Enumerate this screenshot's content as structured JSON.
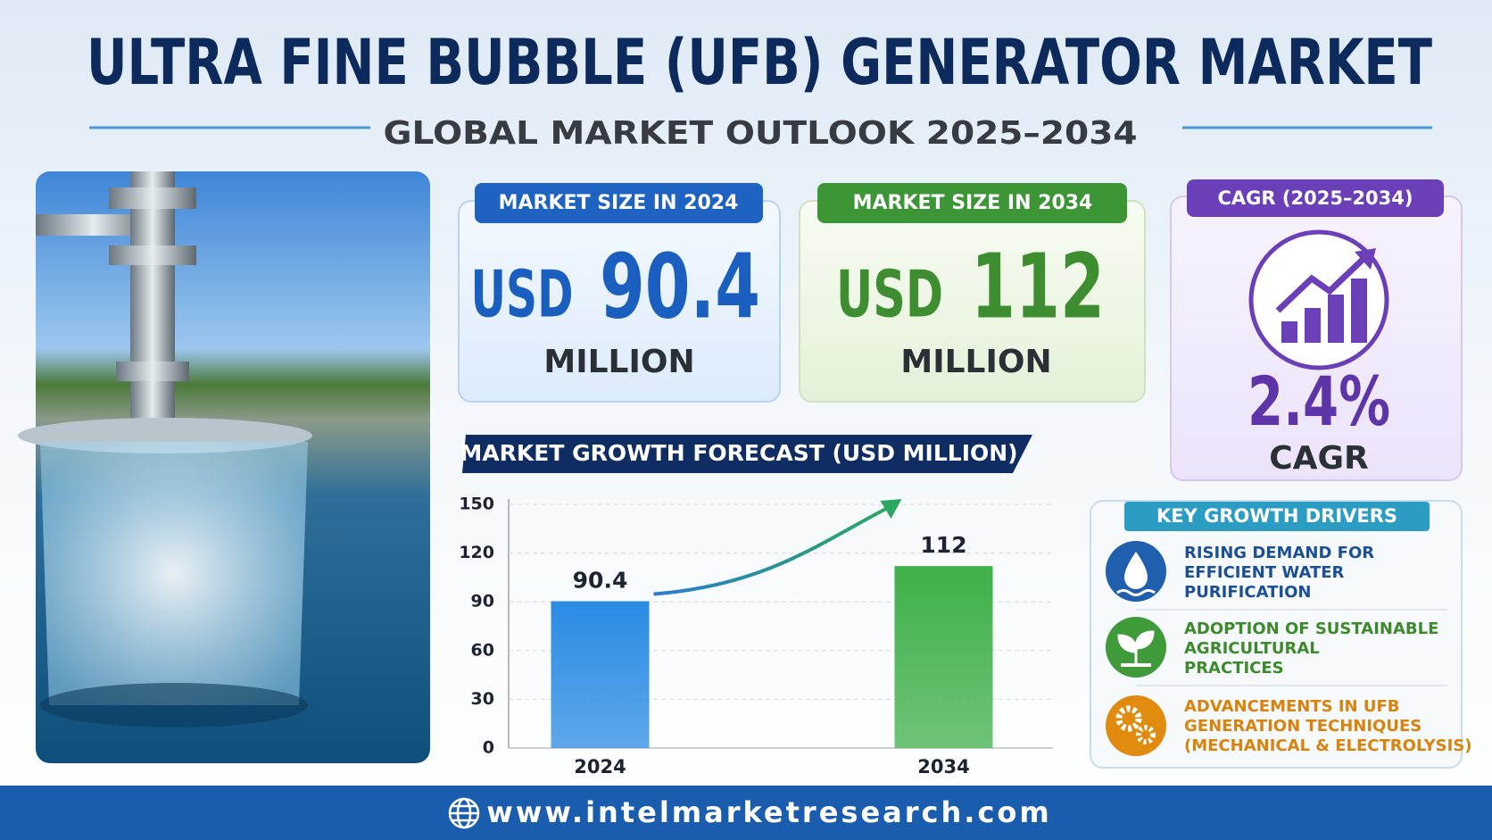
{
  "header": {
    "title": "ULTRA FINE BUBBLE (UFB) GENERATOR MARKET",
    "subtitle": "GLOBAL MARKET OUTLOOK 2025–2034"
  },
  "cards": [
    {
      "label": "MARKET SIZE IN 2024",
      "currency": "USD",
      "value": "90.4",
      "unit": "MILLION"
    },
    {
      "label": "MARKET SIZE IN 2034",
      "currency": "USD",
      "value": "112",
      "unit": "MILLION"
    }
  ],
  "cagr": {
    "label": "CAGR (2025–2034)",
    "value": "2.4%",
    "caption": "CAGR"
  },
  "chart_data": {
    "type": "bar",
    "title": "MARKET GROWTH FORECAST (USD MILLION)",
    "categories": [
      "2024",
      "2034"
    ],
    "values": [
      90.4,
      112
    ],
    "colors": [
      "#2a8be3",
      "#3fb04a"
    ],
    "ylim": [
      0,
      150
    ],
    "yticks": [
      0,
      30,
      60,
      90,
      120,
      150
    ],
    "grid": true
  },
  "drivers": {
    "title": "KEY GROWTH DRIVERS",
    "items": [
      {
        "lines": [
          "RISING DEMAND FOR",
          "EFFICIENT WATER",
          "PURIFICATION"
        ],
        "color": "#1c4f96"
      },
      {
        "lines": [
          "ADOPTION OF SUSTAINABLE",
          "AGRICULTURAL",
          "PRACTICES"
        ],
        "color": "#3d8a2c"
      },
      {
        "lines": [
          "ADVANCEMENTS IN UFB",
          "GENERATION TECHNIQUES",
          "(MECHANICAL & ELECTROLYSIS)"
        ],
        "color": "#d9820c"
      }
    ]
  },
  "footer": {
    "url": "www.intelmarketresearch.com"
  }
}
